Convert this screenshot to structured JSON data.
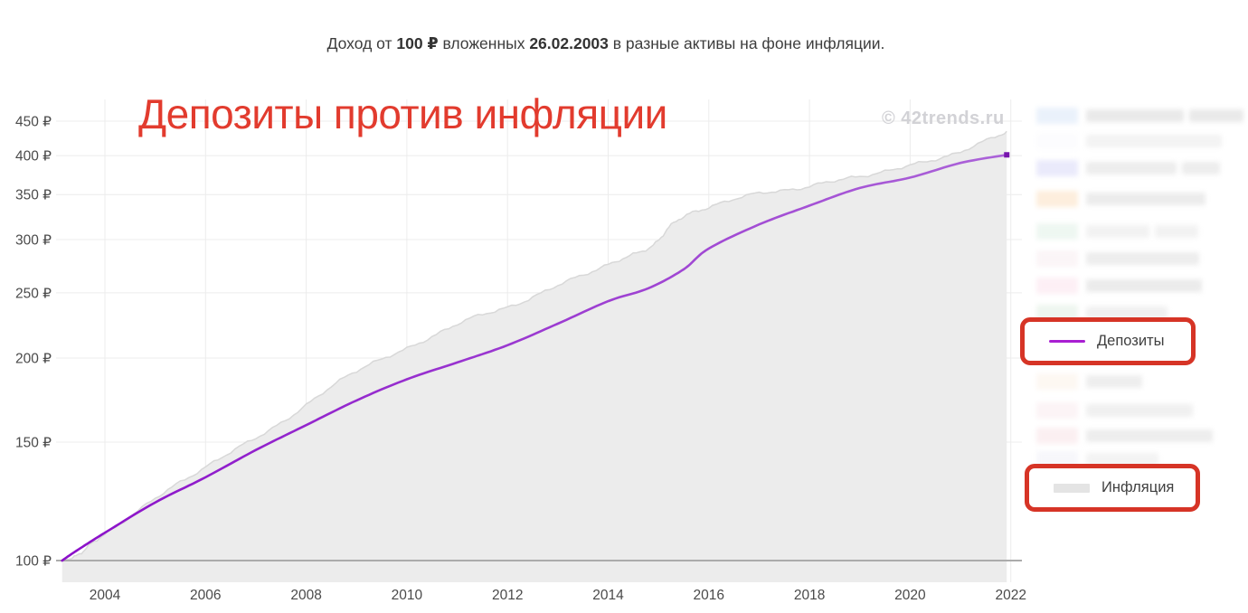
{
  "header": {
    "title_prefix": "Доход от ",
    "title_bold1": "100 ₽",
    "title_mid": " вложенных ",
    "title_bold2": "26.02.2003",
    "title_suffix": " в разные активы на фоне инфляции."
  },
  "overlay": {
    "heading": "Депозиты против инфляции",
    "heading_color": "#e23b2e",
    "watermark": "© 42trends.ru"
  },
  "chart_data": {
    "type": "area",
    "title": "Доход от 100 ₽ вложенных 26.02.2003 в разные активы на фоне инфляции.",
    "start_date": "26.02.2003",
    "start_value": 100,
    "currency": "₽",
    "y_axis": {
      "scale": "log",
      "tick_values": [
        450,
        400,
        350,
        300,
        250,
        200,
        150,
        100
      ],
      "tick_suffix": " ₽",
      "range": [
        100,
        460
      ]
    },
    "x_axis": {
      "tick_years": [
        2004,
        2006,
        2008,
        2010,
        2012,
        2014,
        2016,
        2018,
        2020,
        2022
      ],
      "range": [
        2003.15,
        2022.2
      ]
    },
    "grid": {
      "color": "#ececec",
      "baseline_color": "#ababab"
    },
    "series": [
      {
        "name": "Депозиты",
        "type": "line",
        "color": "#a91fd2",
        "color_start": "#8b10c9",
        "color_end": "#ab63d8",
        "end_marker_color": "#7714ad",
        "points": [
          [
            2003.15,
            100
          ],
          [
            2003.4,
            103
          ],
          [
            2004,
            110
          ],
          [
            2005,
            122
          ],
          [
            2006,
            133
          ],
          [
            2007,
            146
          ],
          [
            2008,
            159
          ],
          [
            2009,
            173
          ],
          [
            2010,
            186
          ],
          [
            2011,
            197
          ],
          [
            2012,
            209
          ],
          [
            2013,
            225
          ],
          [
            2014,
            243
          ],
          [
            2014.8,
            254
          ],
          [
            2015.5,
            271
          ],
          [
            2016,
            291
          ],
          [
            2017,
            316
          ],
          [
            2018,
            337
          ],
          [
            2019,
            358
          ],
          [
            2020,
            371
          ],
          [
            2021,
            390
          ],
          [
            2021.92,
            401
          ]
        ]
      },
      {
        "name": "Инфляция",
        "type": "area",
        "fill": "#ececec",
        "edge": "#d8d8d8",
        "points": [
          [
            2003.15,
            100
          ],
          [
            2003.5,
            102.5
          ],
          [
            2004,
            109.5
          ],
          [
            2005,
            123.5
          ],
          [
            2006,
            138
          ],
          [
            2007,
            152
          ],
          [
            2008,
            170
          ],
          [
            2009,
            192
          ],
          [
            2010,
            206
          ],
          [
            2011,
            225
          ],
          [
            2012,
            238
          ],
          [
            2013,
            256
          ],
          [
            2014,
            276
          ],
          [
            2014.8,
            291
          ],
          [
            2015.3,
            317
          ],
          [
            2016,
            336
          ],
          [
            2017,
            351
          ],
          [
            2018,
            360
          ],
          [
            2019,
            373
          ],
          [
            2020,
            386
          ],
          [
            2021,
            406
          ],
          [
            2021.92,
            433
          ]
        ]
      }
    ],
    "end_values": {
      "Депозиты": 401,
      "Инфляция": 433
    },
    "legend_position": "right"
  },
  "legend": {
    "box_border_color": "#d63426",
    "highlighted": [
      {
        "label": "Депозиты",
        "swatch_type": "line",
        "swatch_color": "#a91fd2"
      },
      {
        "label": "Инфляция",
        "swatch_type": "bar",
        "swatch_color": "#e4e4e4"
      }
    ],
    "obscured_rows": [
      {
        "y": 10,
        "sw": "#eaf1fb",
        "tc": "#e9e9e9",
        "tw": 108,
        "tw2": 60
      },
      {
        "y": 38,
        "sw": "#fcfcfe",
        "tc": "#f3f3f3",
        "tw": 150,
        "tw2": 0
      },
      {
        "y": 68,
        "sw": "#eaeafb",
        "tc": "#ededed",
        "tw": 100,
        "tw2": 42
      },
      {
        "y": 102,
        "sw": "#fdeedd",
        "tc": "#ececec",
        "tw": 132,
        "tw2": 0
      },
      {
        "y": 138,
        "sw": "#eef7f1",
        "tc": "#f2f2f2",
        "tw": 70,
        "tw2": 48
      },
      {
        "y": 168,
        "sw": "#fbf5f7",
        "tc": "#ededed",
        "tw": 125,
        "tw2": 0
      },
      {
        "y": 198,
        "sw": "#fdeff5",
        "tc": "#ebebeb",
        "tw": 128,
        "tw2": 0
      },
      {
        "y": 228,
        "sw": "#eef6ef",
        "tc": "#f0f0f0",
        "tw": 90,
        "tw2": 0
      },
      {
        "y": 304,
        "sw": "#fdf8f2",
        "tc": "#eeeeee",
        "tw": 62,
        "tw2": 0
      },
      {
        "y": 336,
        "sw": "#fcf4f6",
        "tc": "#f0f0f0",
        "tw": 118,
        "tw2": 0
      },
      {
        "y": 364,
        "sw": "#fbeff1",
        "tc": "#ededed",
        "tw": 140,
        "tw2": 0
      },
      {
        "y": 390,
        "sw": "#f7f7fb",
        "tc": "#f3f3f3",
        "tw": 80,
        "tw2": 0
      }
    ]
  }
}
